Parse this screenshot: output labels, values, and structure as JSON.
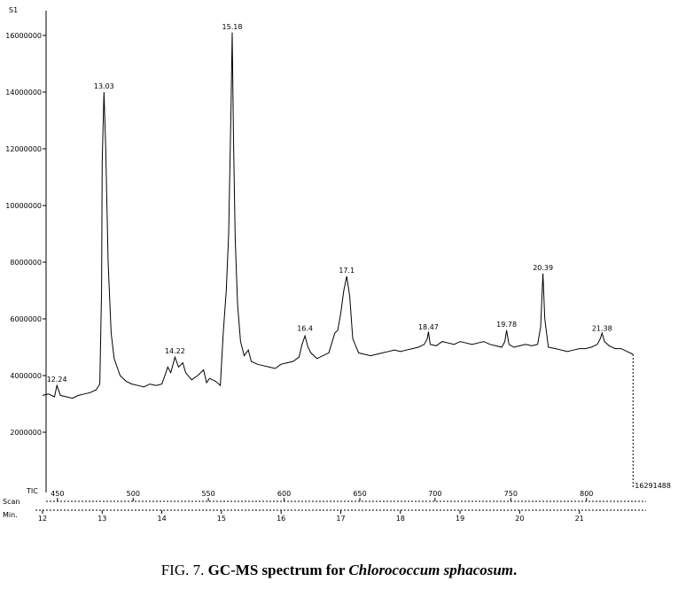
{
  "chart_data": {
    "type": "line",
    "title": "",
    "ylabel_top": "S1",
    "scan_label": "Scan",
    "min_label": "Min.",
    "tic_label": "TIC",
    "end_value_label": "16291488",
    "ylim": [
      0,
      17000000
    ],
    "y_ticks": [
      {
        "value": 2000000,
        "label": "2000000"
      },
      {
        "value": 4000000,
        "label": "4000000"
      },
      {
        "value": 6000000,
        "label": "6000000"
      },
      {
        "value": 8000000,
        "label": "8000000"
      },
      {
        "value": 10000000,
        "label": "10000000"
      },
      {
        "value": 12000000,
        "label": "12000000"
      },
      {
        "value": 14000000,
        "label": "14000000"
      },
      {
        "value": 16000000,
        "label": "16000000"
      }
    ],
    "xlim_min": [
      12,
      22
    ],
    "min_ticks": [
      12,
      13,
      14,
      15,
      16,
      17,
      18,
      19,
      20,
      21
    ],
    "scan_ticks": [
      {
        "min": 12.25,
        "label": "450"
      },
      {
        "min": 13.52,
        "label": "500"
      },
      {
        "min": 14.78,
        "label": "550"
      },
      {
        "min": 16.05,
        "label": "600"
      },
      {
        "min": 17.32,
        "label": "650"
      },
      {
        "min": 18.58,
        "label": "700"
      },
      {
        "min": 19.85,
        "label": "750"
      },
      {
        "min": 21.12,
        "label": "800"
      }
    ],
    "peak_labels": [
      {
        "x": 12.24,
        "y": 3650000,
        "label": "12.24"
      },
      {
        "x": 13.03,
        "y": 14000000,
        "label": "13.03"
      },
      {
        "x": 14.22,
        "y": 4650000,
        "label": "14.22"
      },
      {
        "x": 15.18,
        "y": 16100000,
        "label": "15.18"
      },
      {
        "x": 16.4,
        "y": 5450000,
        "label": "16.4"
      },
      {
        "x": 17.1,
        "y": 7500000,
        "label": "17.1"
      },
      {
        "x": 18.47,
        "y": 5500000,
        "label": "18.47"
      },
      {
        "x": 19.78,
        "y": 5600000,
        "label": "19.78"
      },
      {
        "x": 20.39,
        "y": 7600000,
        "label": "20.39"
      },
      {
        "x": 21.38,
        "y": 5450000,
        "label": "21.38"
      }
    ],
    "series": [
      {
        "x": [
          12.0,
          12.1,
          12.2,
          12.24,
          12.3,
          12.4,
          12.5,
          12.6,
          12.7,
          12.8,
          12.9,
          12.96,
          12.99,
          13.0,
          13.03,
          13.06,
          13.1,
          13.15,
          13.2,
          13.3,
          13.4,
          13.5,
          13.6,
          13.7,
          13.8,
          13.9,
          14.0,
          14.05,
          14.1,
          14.15,
          14.22,
          14.28,
          14.35,
          14.4,
          14.5,
          14.6,
          14.7,
          14.75,
          14.8,
          14.9,
          14.98,
          15.03,
          15.08,
          15.12,
          15.16,
          15.18,
          15.2,
          15.23,
          15.27,
          15.32,
          15.38,
          15.45,
          15.5,
          15.6,
          15.7,
          15.8,
          15.9,
          16.0,
          16.1,
          16.2,
          16.3,
          16.35,
          16.4,
          16.45,
          16.5,
          16.6,
          16.7,
          16.8,
          16.9,
          16.95,
          17.0,
          17.05,
          17.1,
          17.15,
          17.2,
          17.3,
          17.4,
          17.5,
          17.6,
          17.7,
          17.8,
          17.9,
          18.0,
          18.1,
          18.2,
          18.3,
          18.4,
          18.45,
          18.47,
          18.5,
          18.6,
          18.7,
          18.8,
          18.9,
          19.0,
          19.1,
          19.2,
          19.3,
          19.4,
          19.5,
          19.6,
          19.7,
          19.75,
          19.78,
          19.82,
          19.9,
          20.0,
          20.1,
          20.2,
          20.3,
          20.35,
          20.39,
          20.42,
          20.48,
          20.6,
          20.7,
          20.8,
          20.9,
          21.0,
          21.1,
          21.2,
          21.3,
          21.35,
          21.38,
          21.42,
          21.5,
          21.6,
          21.7,
          21.8,
          21.9
        ],
        "y": [
          3300000,
          3350000,
          3250000,
          3650000,
          3300000,
          3250000,
          3200000,
          3300000,
          3350000,
          3400000,
          3500000,
          3700000,
          7000000,
          11500000,
          14000000,
          12000000,
          8000000,
          5500000,
          4600000,
          4000000,
          3800000,
          3700000,
          3650000,
          3600000,
          3700000,
          3650000,
          3700000,
          4000000,
          4300000,
          4100000,
          4650000,
          4300000,
          4450000,
          4100000,
          3850000,
          4000000,
          4200000,
          3750000,
          3900000,
          3800000,
          3650000,
          5500000,
          7000000,
          9000000,
          13500000,
          16100000,
          12500000,
          8800000,
          6500000,
          5200000,
          4700000,
          4900000,
          4500000,
          4400000,
          4350000,
          4300000,
          4250000,
          4400000,
          4450000,
          4500000,
          4650000,
          5100000,
          5400000,
          5000000,
          4800000,
          4600000,
          4700000,
          4800000,
          5500000,
          5600000,
          6200000,
          7000000,
          7500000,
          6800000,
          5300000,
          4800000,
          4750000,
          4700000,
          4750000,
          4800000,
          4850000,
          4900000,
          4850000,
          4900000,
          4950000,
          5000000,
          5100000,
          5300000,
          5550000,
          5100000,
          5050000,
          5200000,
          5150000,
          5100000,
          5200000,
          5150000,
          5100000,
          5150000,
          5200000,
          5100000,
          5050000,
          5000000,
          5200000,
          5600000,
          5100000,
          5000000,
          5050000,
          5100000,
          5050000,
          5100000,
          5700000,
          7600000,
          6000000,
          5000000,
          4950000,
          4900000,
          4850000,
          4900000,
          4950000,
          4950000,
          5000000,
          5100000,
          5300000,
          5500000,
          5200000,
          5050000,
          4950000,
          4950000,
          4850000,
          4750000
        ]
      }
    ]
  },
  "caption": {
    "prefix": "FIG. 7. ",
    "bold": "GC-MS spectrum for ",
    "italic": "Chlorococcum sphacosum",
    "end": "."
  }
}
